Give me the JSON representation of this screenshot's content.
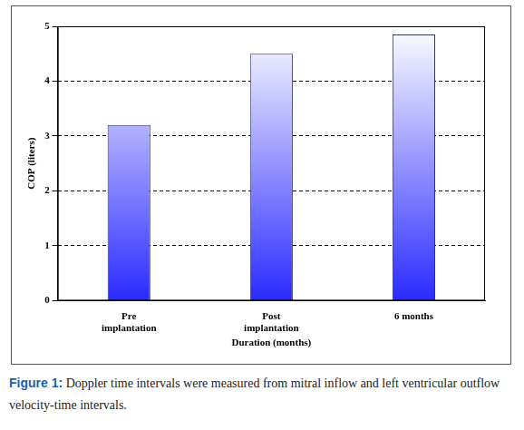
{
  "chart_data": {
    "type": "bar",
    "categories": [
      "Pre\nimplantation",
      "Post\nimplantation",
      "6 months"
    ],
    "values": [
      3.2,
      4.5,
      4.85
    ],
    "color": "#2a2aff",
    "x_label": "Duration (months)",
    "y_label": "COP (liters)",
    "ylim": [
      0,
      5
    ],
    "yticks": [
      0,
      1,
      2,
      3,
      4,
      5
    ],
    "grid": true,
    "caption_label": "Figure 1:",
    "caption": "Doppler time intervals were measured from mitral inflow and left ventricular outflow velocity-time intervals."
  }
}
